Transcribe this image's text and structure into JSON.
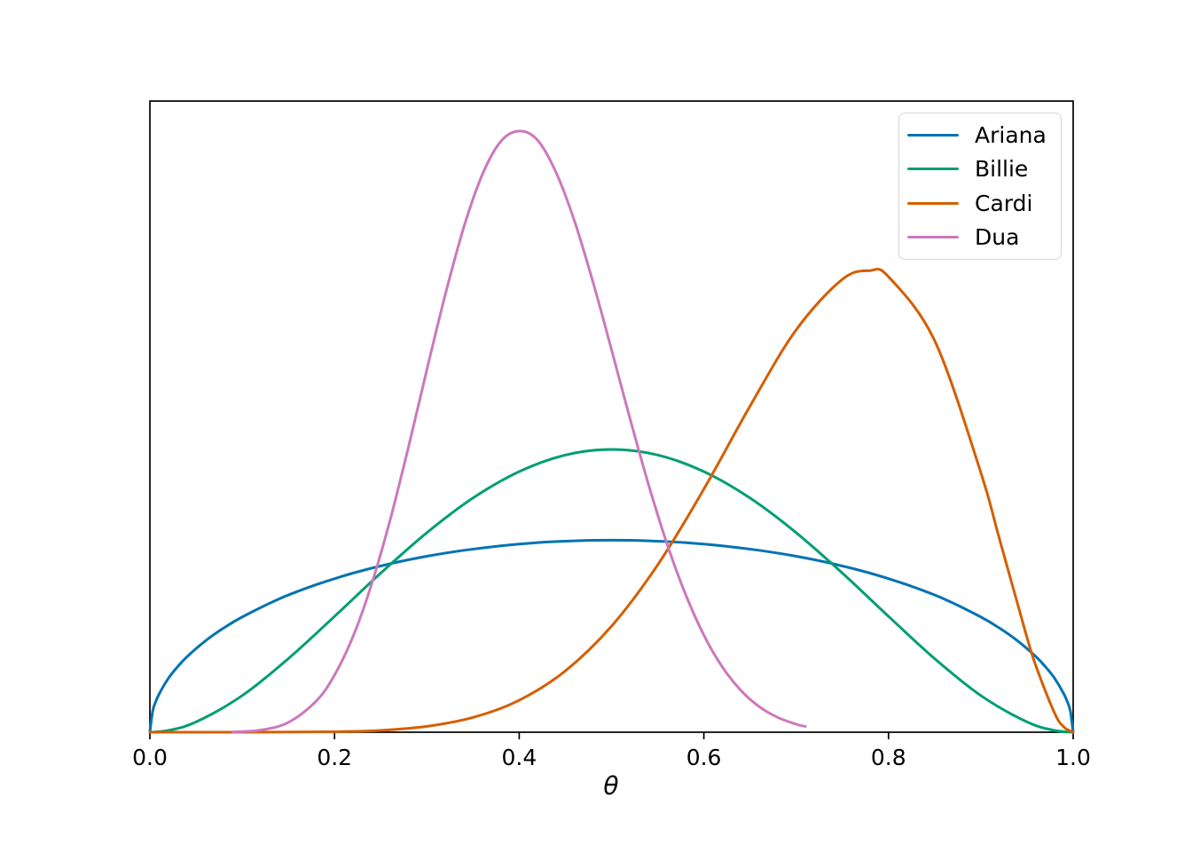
{
  "chart_data": {
    "type": "line",
    "title": "",
    "xlabel": "θ",
    "ylabel": "",
    "xlim": [
      0,
      1
    ],
    "ylim": [
      0,
      4.185
    ],
    "grid": false,
    "legend_position": "upper right",
    "x_ticks": [
      0,
      0.2,
      0.4,
      0.6,
      0.8,
      1.0
    ],
    "x_tick_labels": [
      "0.0",
      "0.2",
      "0.4",
      "0.6",
      "0.8",
      "1.0"
    ],
    "series": [
      {
        "name": "Ariana",
        "color": "#0173b2",
        "x": [
          0,
          0.003,
          0.006,
          0.01,
          0.02,
          0.03,
          0.04,
          0.06,
          0.08,
          0.1,
          0.14,
          0.18,
          0.22,
          0.26,
          0.3,
          0.34,
          0.38,
          0.42,
          0.46,
          0.5,
          0.54,
          0.58,
          0.62,
          0.66,
          0.7,
          0.74,
          0.78,
          0.82,
          0.86,
          0.9,
          0.92,
          0.94,
          0.96,
          0.97,
          0.98,
          0.99,
          0.994,
          0.997,
          1.0
        ],
        "y": [
          0,
          0.139,
          0.197,
          0.253,
          0.357,
          0.434,
          0.499,
          0.605,
          0.691,
          0.764,
          0.884,
          0.978,
          1.055,
          1.117,
          1.167,
          1.206,
          1.236,
          1.257,
          1.269,
          1.273,
          1.269,
          1.257,
          1.236,
          1.206,
          1.167,
          1.117,
          1.055,
          0.978,
          0.884,
          0.764,
          0.691,
          0.605,
          0.499,
          0.434,
          0.357,
          0.253,
          0.197,
          0.139,
          0
        ]
      },
      {
        "name": "Billie",
        "color": "#029e73",
        "x": [
          0,
          0.02,
          0.05,
          0.1,
          0.15,
          0.2,
          0.25,
          0.3,
          0.35,
          0.4,
          0.45,
          0.5,
          0.55,
          0.6,
          0.65,
          0.7,
          0.75,
          0.8,
          0.85,
          0.9,
          0.95,
          0.98,
          1.0
        ],
        "y": [
          0,
          0.012,
          0.068,
          0.243,
          0.488,
          0.768,
          1.055,
          1.323,
          1.553,
          1.728,
          1.838,
          1.875,
          1.838,
          1.728,
          1.553,
          1.323,
          1.055,
          0.768,
          0.488,
          0.243,
          0.068,
          0.012,
          0
        ]
      },
      {
        "name": "Cardi",
        "color": "#d55e00",
        "x": [
          0,
          0.1,
          0.2,
          0.25,
          0.3,
          0.35,
          0.4,
          0.45,
          0.5,
          0.55,
          0.6,
          0.65,
          0.7,
          0.75,
          0.78,
          0.8,
          0.85,
          0.9,
          0.92,
          0.95,
          0.96,
          0.98,
          0.99,
          1.0
        ],
        "y": [
          0,
          0.0,
          0.003,
          0.012,
          0.039,
          0.098,
          0.212,
          0.407,
          0.703,
          1.11,
          1.612,
          2.162,
          2.668,
          3.003,
          3.061,
          3.02,
          2.597,
          1.722,
          1.286,
          0.629,
          0.433,
          0.125,
          0.034,
          0
        ]
      },
      {
        "name": "Dua",
        "color": "#cc78bc",
        "x": [
          0.09,
          0.12,
          0.15,
          0.18,
          0.2,
          0.22,
          0.24,
          0.26,
          0.28,
          0.3,
          0.32,
          0.34,
          0.36,
          0.38,
          0.4,
          0.42,
          0.44,
          0.46,
          0.48,
          0.5,
          0.52,
          0.54,
          0.56,
          0.58,
          0.6,
          0.62,
          0.64,
          0.66,
          0.68,
          0.7,
          0.71
        ],
        "y": [
          0.002,
          0.014,
          0.065,
          0.205,
          0.379,
          0.634,
          0.978,
          1.403,
          1.889,
          2.404,
          2.903,
          3.348,
          3.697,
          3.917,
          3.986,
          3.925,
          3.711,
          3.387,
          2.983,
          2.537,
          2.08,
          1.644,
          1.251,
          0.917,
          0.644,
          0.433,
          0.278,
          0.169,
          0.098,
          0.053,
          0.038
        ]
      }
    ]
  },
  "style": {
    "background": "#ffffff",
    "spine_color": "#000000",
    "text_color": "#000000",
    "legend_border_color": "#d5d5d5"
  }
}
